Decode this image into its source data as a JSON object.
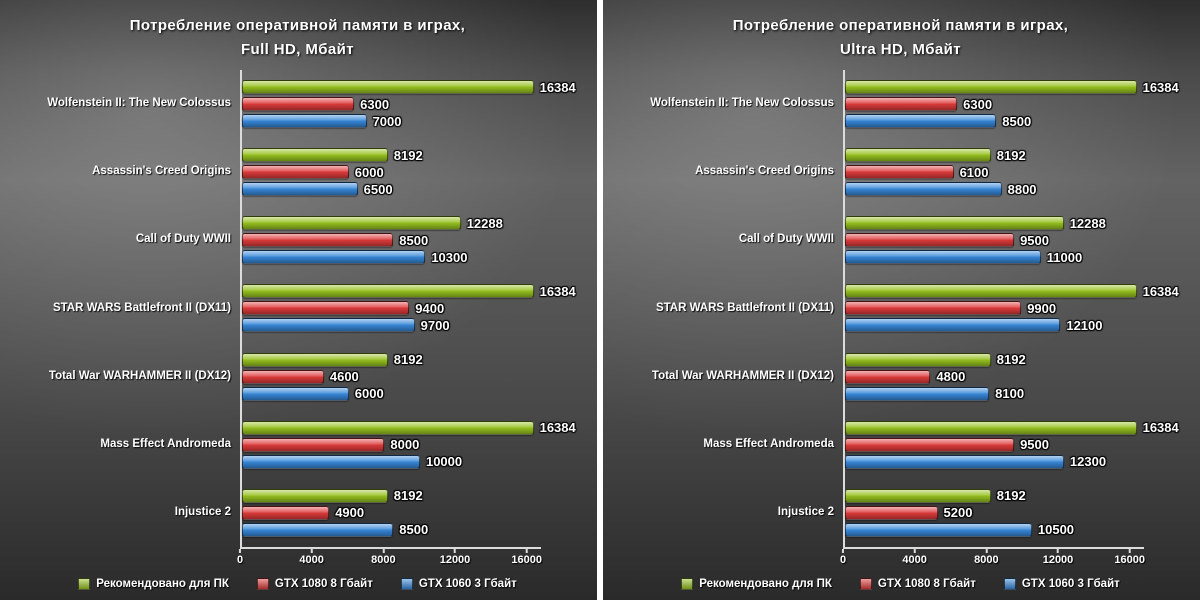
{
  "chart_data": [
    {
      "type": "bar",
      "orientation": "horizontal",
      "title_line1": "Потребление оперативной памяти в играх,",
      "title_line2": "Full HD, Мбайт",
      "categories": [
        "Wolfenstein II: The New Colossus",
        "Assassin's Creed Origins",
        "Call of Duty WWII",
        "STAR WARS Battlefront II (DX11)",
        "Total War WARHAMMER II (DX12)",
        "Mass Effect Andromeda",
        "Injustice 2"
      ],
      "series": [
        {
          "name": "Рекомендовано для ПК",
          "color": "#96c11f",
          "values": [
            16384,
            8192,
            12288,
            16384,
            8192,
            16384,
            8192
          ]
        },
        {
          "name": "GTX 1080 8 Гбайт",
          "color": "#dd3b3b",
          "values": [
            6300,
            6000,
            8500,
            9400,
            4600,
            8000,
            4900
          ]
        },
        {
          "name": "GTX 1060 3 Гбайт",
          "color": "#3787d8",
          "values": [
            7000,
            6500,
            10300,
            9700,
            6000,
            10000,
            8500
          ]
        }
      ],
      "xlim": [
        0,
        16800
      ],
      "ticks": [
        0,
        4000,
        8000,
        12000,
        16000
      ],
      "grid": false,
      "legend_position": "bottom"
    },
    {
      "type": "bar",
      "orientation": "horizontal",
      "title_line1": "Потребление оперативной памяти в играх,",
      "title_line2": "Ultra HD, Мбайт",
      "categories": [
        "Wolfenstein II: The New Colossus",
        "Assassin's Creed Origins",
        "Call of Duty WWII",
        "STAR WARS Battlefront II (DX11)",
        "Total War WARHAMMER II (DX12)",
        "Mass Effect Andromeda",
        "Injustice 2"
      ],
      "series": [
        {
          "name": "Рекомендовано для ПК",
          "color": "#96c11f",
          "values": [
            16384,
            8192,
            12288,
            16384,
            8192,
            16384,
            8192
          ]
        },
        {
          "name": "GTX 1080 8 Гбайт",
          "color": "#dd3b3b",
          "values": [
            6300,
            6100,
            9500,
            9900,
            4800,
            9500,
            5200
          ]
        },
        {
          "name": "GTX 1060 3 Гбайт",
          "color": "#3787d8",
          "values": [
            8500,
            8800,
            11000,
            12100,
            8100,
            12300,
            10500
          ]
        }
      ],
      "xlim": [
        0,
        16800
      ],
      "ticks": [
        0,
        4000,
        8000,
        12000,
        16000
      ],
      "grid": false,
      "legend_position": "bottom"
    }
  ]
}
